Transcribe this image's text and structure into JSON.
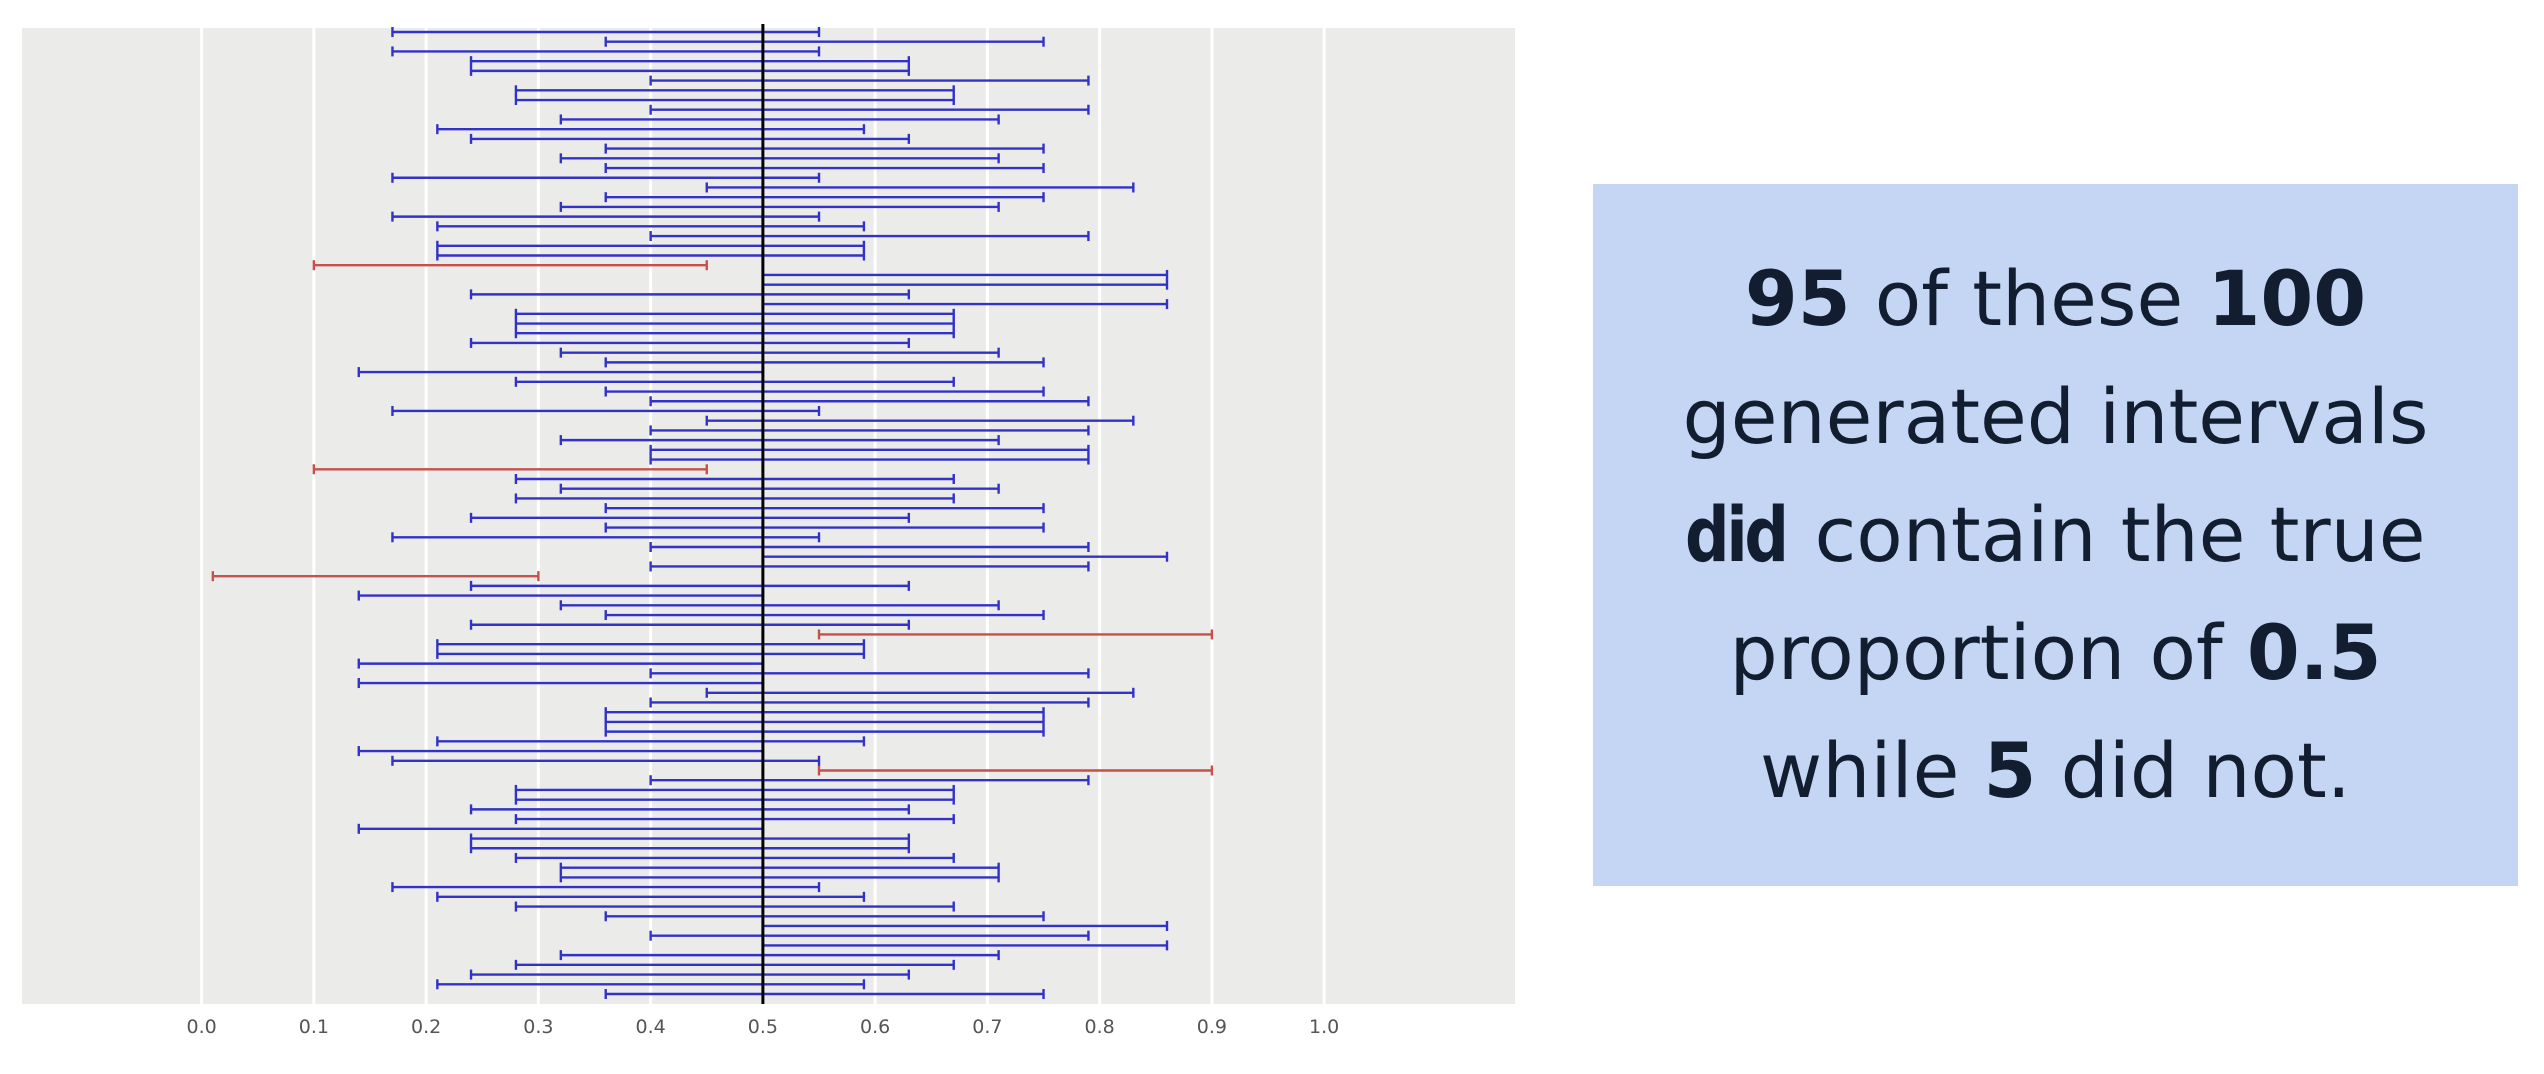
{
  "chart_data": {
    "type": "interval",
    "xlim": [
      -0.16,
      1.17
    ],
    "x_ticks": [
      0.0,
      0.1,
      0.2,
      0.3,
      0.4,
      0.5,
      0.6,
      0.7,
      0.8,
      0.9,
      1.0
    ],
    "x_tick_labels": [
      "0.0",
      "0.1",
      "0.2",
      "0.3",
      "0.4",
      "0.5",
      "0.6",
      "0.7",
      "0.8",
      "0.9",
      "1.0"
    ],
    "reference_x": 0.5,
    "grid": true,
    "colors": {
      "panel": "#ebebea",
      "grid": "#ffffff",
      "contains": "#3232c8",
      "misses": "#c8504b",
      "reference": "#000000"
    },
    "intervals": [
      [
        0.17,
        0.55
      ],
      [
        0.36,
        0.75
      ],
      [
        0.17,
        0.55
      ],
      [
        0.24,
        0.63
      ],
      [
        0.24,
        0.63
      ],
      [
        0.4,
        0.79
      ],
      [
        0.28,
        0.67
      ],
      [
        0.28,
        0.67
      ],
      [
        0.4,
        0.79
      ],
      [
        0.32,
        0.71
      ],
      [
        0.21,
        0.59
      ],
      [
        0.24,
        0.63
      ],
      [
        0.36,
        0.75
      ],
      [
        0.32,
        0.71
      ],
      [
        0.36,
        0.75
      ],
      [
        0.17,
        0.55
      ],
      [
        0.45,
        0.83
      ],
      [
        0.36,
        0.75
      ],
      [
        0.32,
        0.71
      ],
      [
        0.17,
        0.55
      ],
      [
        0.21,
        0.59
      ],
      [
        0.4,
        0.79
      ],
      [
        0.21,
        0.59
      ],
      [
        0.21,
        0.59
      ],
      [
        0.1,
        0.45
      ],
      [
        0.5,
        0.86
      ],
      [
        0.5,
        0.86
      ],
      [
        0.24,
        0.63
      ],
      [
        0.5,
        0.86
      ],
      [
        0.28,
        0.67
      ],
      [
        0.28,
        0.67
      ],
      [
        0.28,
        0.67
      ],
      [
        0.24,
        0.63
      ],
      [
        0.32,
        0.71
      ],
      [
        0.36,
        0.75
      ],
      [
        0.14,
        0.5
      ],
      [
        0.28,
        0.67
      ],
      [
        0.36,
        0.75
      ],
      [
        0.4,
        0.79
      ],
      [
        0.17,
        0.55
      ],
      [
        0.45,
        0.83
      ],
      [
        0.4,
        0.79
      ],
      [
        0.32,
        0.71
      ],
      [
        0.4,
        0.79
      ],
      [
        0.4,
        0.79
      ],
      [
        0.1,
        0.45
      ],
      [
        0.28,
        0.67
      ],
      [
        0.32,
        0.71
      ],
      [
        0.28,
        0.67
      ],
      [
        0.36,
        0.75
      ],
      [
        0.24,
        0.63
      ],
      [
        0.36,
        0.75
      ],
      [
        0.17,
        0.55
      ],
      [
        0.4,
        0.79
      ],
      [
        0.5,
        0.86
      ],
      [
        0.4,
        0.79
      ],
      [
        0.01,
        0.3
      ],
      [
        0.24,
        0.63
      ],
      [
        0.14,
        0.5
      ],
      [
        0.32,
        0.71
      ],
      [
        0.36,
        0.75
      ],
      [
        0.24,
        0.63
      ],
      [
        0.55,
        0.9
      ],
      [
        0.21,
        0.59
      ],
      [
        0.21,
        0.59
      ],
      [
        0.14,
        0.5
      ],
      [
        0.4,
        0.79
      ],
      [
        0.14,
        0.5
      ],
      [
        0.45,
        0.83
      ],
      [
        0.4,
        0.79
      ],
      [
        0.36,
        0.75
      ],
      [
        0.36,
        0.75
      ],
      [
        0.36,
        0.75
      ],
      [
        0.21,
        0.59
      ],
      [
        0.14,
        0.5
      ],
      [
        0.17,
        0.55
      ],
      [
        0.55,
        0.9
      ],
      [
        0.4,
        0.79
      ],
      [
        0.28,
        0.67
      ],
      [
        0.28,
        0.67
      ],
      [
        0.24,
        0.63
      ],
      [
        0.28,
        0.67
      ],
      [
        0.14,
        0.5
      ],
      [
        0.24,
        0.63
      ],
      [
        0.24,
        0.63
      ],
      [
        0.28,
        0.67
      ],
      [
        0.32,
        0.71
      ],
      [
        0.32,
        0.71
      ],
      [
        0.17,
        0.55
      ],
      [
        0.21,
        0.59
      ],
      [
        0.28,
        0.67
      ],
      [
        0.36,
        0.75
      ],
      [
        0.5,
        0.86
      ],
      [
        0.4,
        0.79
      ],
      [
        0.5,
        0.86
      ],
      [
        0.32,
        0.71
      ],
      [
        0.28,
        0.67
      ],
      [
        0.24,
        0.63
      ],
      [
        0.21,
        0.59
      ],
      [
        0.36,
        0.75
      ]
    ]
  },
  "callout": {
    "line1_num1": "95",
    "line1_mid": " of these ",
    "line1_num2": "100",
    "line2": "generated intervals",
    "line3_strong": "did",
    "line3_rest": " contain the true",
    "line4_pre": "proportion of ",
    "line4_num": "0.5",
    "line5_pre": "while ",
    "line5_num": "5",
    "line5_post": " did not."
  }
}
